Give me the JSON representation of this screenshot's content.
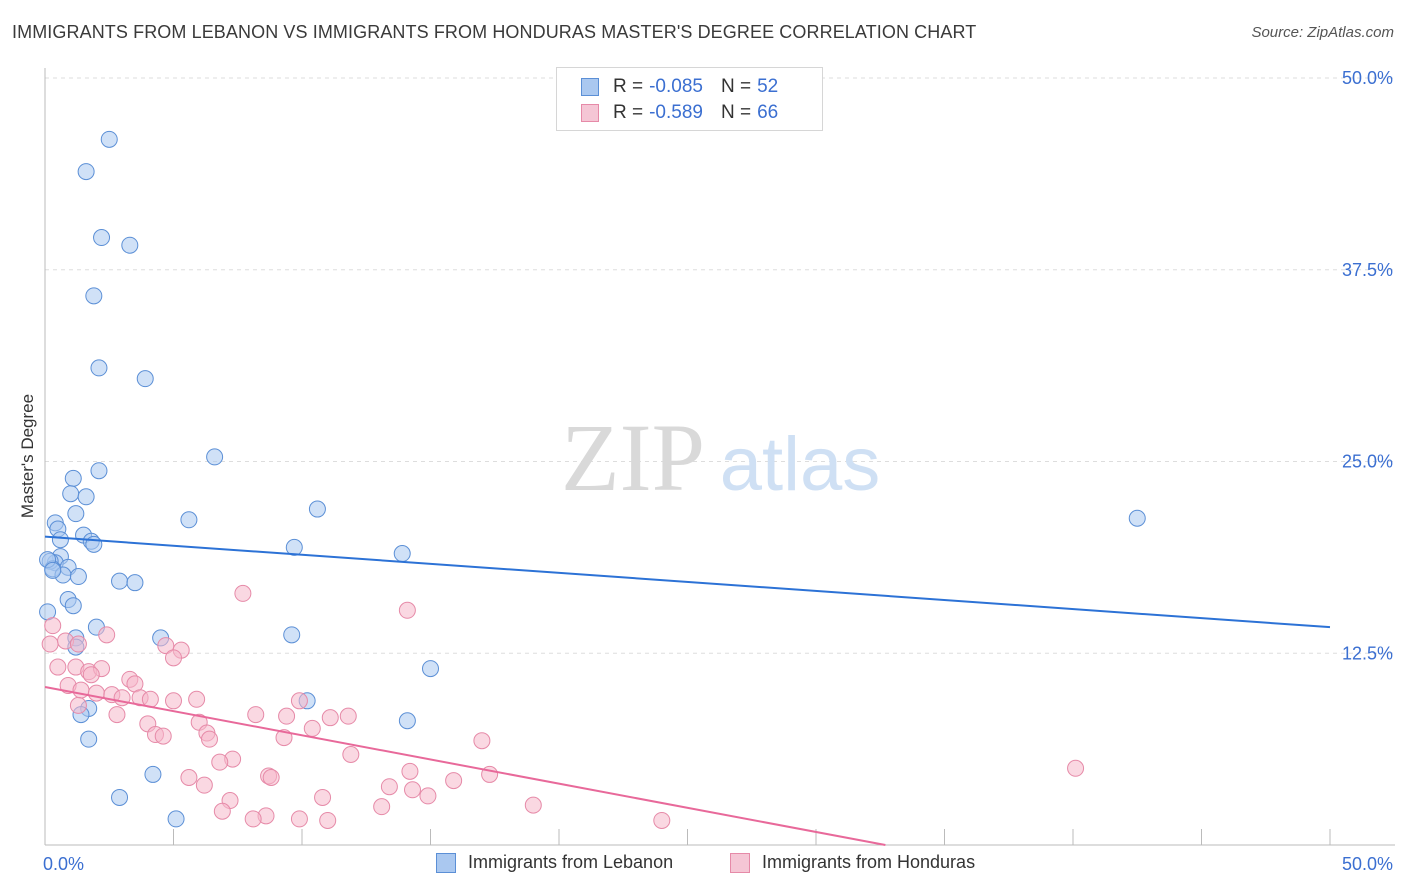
{
  "title": "IMMIGRANTS FROM LEBANON VS IMMIGRANTS FROM HONDURAS MASTER'S DEGREE CORRELATION CHART",
  "source": "Source: ZipAtlas.com",
  "watermark": {
    "zip": "ZIP",
    "atlas": "atlas"
  },
  "legend": {
    "r_label": "R =",
    "n_label": "N =",
    "rows": [
      {
        "r": "-0.085",
        "n": "52"
      },
      {
        "r": "-0.589",
        "n": "66"
      }
    ]
  },
  "colors": {
    "lebanon_fill": "#aac8f0",
    "lebanon_stroke": "#5b8fd6",
    "lebanon_line": "#2c72d6",
    "honduras_fill": "#f5b8cb",
    "honduras_stroke": "#e68aa8",
    "honduras_line": "#e8699a",
    "tick_text": "#3b6fd1",
    "grid": "#dddddd"
  },
  "chart_data": {
    "type": "scatter",
    "title": "IMMIGRANTS FROM LEBANON VS IMMIGRANTS FROM HONDURAS MASTER'S DEGREE CORRELATION CHART",
    "xlabel": "",
    "ylabel": "Master's Degree",
    "xlim": [
      0,
      50
    ],
    "ylim": [
      0,
      50
    ],
    "x_tick_labels": [
      "0.0%",
      "50.0%"
    ],
    "y_ticks": [
      12.5,
      25.0,
      37.5,
      50.0
    ],
    "y_tick_labels": [
      "12.5%",
      "25.0%",
      "37.5%",
      "50.0%"
    ],
    "grid": true,
    "legend_position": "bottom",
    "series": [
      {
        "name": "Immigrants from Lebanon",
        "r": -0.085,
        "n": 52,
        "trend": {
          "x": [
            0,
            50
          ],
          "y": [
            20.1,
            14.2
          ]
        },
        "points": [
          [
            2.5,
            46.0
          ],
          [
            1.6,
            43.9
          ],
          [
            2.2,
            39.6
          ],
          [
            3.3,
            39.1
          ],
          [
            1.9,
            35.8
          ],
          [
            2.1,
            31.1
          ],
          [
            3.9,
            30.4
          ],
          [
            6.6,
            25.3
          ],
          [
            2.1,
            24.4
          ],
          [
            1.1,
            23.9
          ],
          [
            1.0,
            22.9
          ],
          [
            1.6,
            22.7
          ],
          [
            10.6,
            21.9
          ],
          [
            1.2,
            21.6
          ],
          [
            5.6,
            21.2
          ],
          [
            0.4,
            21.0
          ],
          [
            0.5,
            20.6
          ],
          [
            1.5,
            20.2
          ],
          [
            0.6,
            19.9
          ],
          [
            1.8,
            19.8
          ],
          [
            1.9,
            19.6
          ],
          [
            9.7,
            19.4
          ],
          [
            13.9,
            19.0
          ],
          [
            0.6,
            18.8
          ],
          [
            0.4,
            18.4
          ],
          [
            0.2,
            18.5
          ],
          [
            0.9,
            18.1
          ],
          [
            0.3,
            18.0
          ],
          [
            0.7,
            17.6
          ],
          [
            1.3,
            17.5
          ],
          [
            2.9,
            17.2
          ],
          [
            3.5,
            17.1
          ],
          [
            0.9,
            16.0
          ],
          [
            1.1,
            15.6
          ],
          [
            0.1,
            15.2
          ],
          [
            2.0,
            14.2
          ],
          [
            9.6,
            13.7
          ],
          [
            1.2,
            13.5
          ],
          [
            4.5,
            13.5
          ],
          [
            1.2,
            12.9
          ],
          [
            15.0,
            11.5
          ],
          [
            10.2,
            9.4
          ],
          [
            1.7,
            8.9
          ],
          [
            1.4,
            8.5
          ],
          [
            14.1,
            8.1
          ],
          [
            1.7,
            6.9
          ],
          [
            4.2,
            4.6
          ],
          [
            2.9,
            3.1
          ],
          [
            5.1,
            1.7
          ],
          [
            42.5,
            21.3
          ],
          [
            0.1,
            18.6
          ],
          [
            0.3,
            17.9
          ]
        ]
      },
      {
        "name": "Immigrants from Honduras",
        "r": -0.589,
        "n": 66,
        "trend": {
          "x": [
            0,
            32.7
          ],
          "y": [
            10.3,
            0
          ]
        },
        "points": [
          [
            7.7,
            16.4
          ],
          [
            14.1,
            15.3
          ],
          [
            2.4,
            13.7
          ],
          [
            0.3,
            14.3
          ],
          [
            0.2,
            13.1
          ],
          [
            0.8,
            13.3
          ],
          [
            1.3,
            13.1
          ],
          [
            4.7,
            13.0
          ],
          [
            5.3,
            12.7
          ],
          [
            5.0,
            12.2
          ],
          [
            0.5,
            11.6
          ],
          [
            1.2,
            11.6
          ],
          [
            1.7,
            11.3
          ],
          [
            2.2,
            11.5
          ],
          [
            1.8,
            11.1
          ],
          [
            3.3,
            10.8
          ],
          [
            3.5,
            10.5
          ],
          [
            0.9,
            10.4
          ],
          [
            1.4,
            10.1
          ],
          [
            2.0,
            9.9
          ],
          [
            2.6,
            9.8
          ],
          [
            3.0,
            9.6
          ],
          [
            3.7,
            9.6
          ],
          [
            4.1,
            9.5
          ],
          [
            5.0,
            9.4
          ],
          [
            5.9,
            9.5
          ],
          [
            9.9,
            9.4
          ],
          [
            1.3,
            9.1
          ],
          [
            2.8,
            8.5
          ],
          [
            8.2,
            8.5
          ],
          [
            9.4,
            8.4
          ],
          [
            11.8,
            8.4
          ],
          [
            11.1,
            8.3
          ],
          [
            6.0,
            8.0
          ],
          [
            4.0,
            7.9
          ],
          [
            10.4,
            7.6
          ],
          [
            6.3,
            7.3
          ],
          [
            4.3,
            7.2
          ],
          [
            4.6,
            7.1
          ],
          [
            9.3,
            7.0
          ],
          [
            6.4,
            6.9
          ],
          [
            17.0,
            6.8
          ],
          [
            11.9,
            5.9
          ],
          [
            7.3,
            5.6
          ],
          [
            6.8,
            5.4
          ],
          [
            40.1,
            5.0
          ],
          [
            14.2,
            4.8
          ],
          [
            17.3,
            4.6
          ],
          [
            5.6,
            4.4
          ],
          [
            8.7,
            4.5
          ],
          [
            8.8,
            4.4
          ],
          [
            15.9,
            4.2
          ],
          [
            6.2,
            3.9
          ],
          [
            13.4,
            3.8
          ],
          [
            14.3,
            3.6
          ],
          [
            14.9,
            3.2
          ],
          [
            10.8,
            3.1
          ],
          [
            7.2,
            2.9
          ],
          [
            13.1,
            2.5
          ],
          [
            19.0,
            2.6
          ],
          [
            6.9,
            2.2
          ],
          [
            8.6,
            1.9
          ],
          [
            8.1,
            1.7
          ],
          [
            9.9,
            1.7
          ],
          [
            11.0,
            1.6
          ],
          [
            24.0,
            1.6
          ]
        ]
      }
    ]
  }
}
